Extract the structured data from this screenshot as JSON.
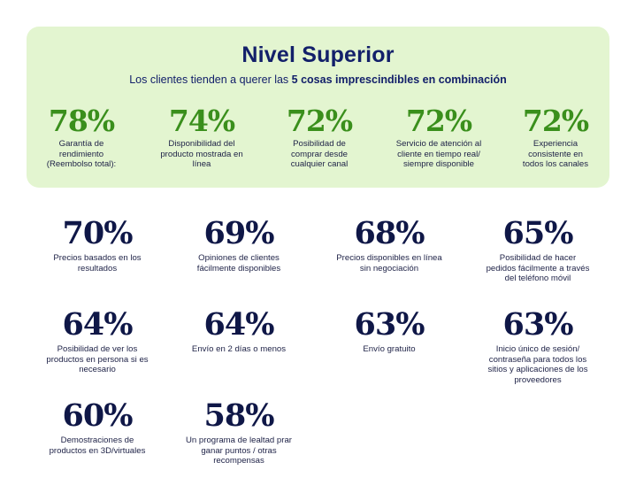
{
  "header": {
    "title": "Nivel Superior",
    "subtitle_prefix": "Los clientes tienden a querer las ",
    "subtitle_bold": "5 cosas imprescindibles en combinación"
  },
  "top_stats": [
    {
      "value": "78%",
      "label": "Garantía de rendimiento (Reembolso total):"
    },
    {
      "value": "74%",
      "label": "Disponibilidad del producto mostrada en línea"
    },
    {
      "value": "72%",
      "label": "Posibilidad de comprar desde cualquier canal"
    },
    {
      "value": "72%",
      "label": "Servicio de atención al cliente en tiempo real/ siempre disponible"
    },
    {
      "value": "72%",
      "label": "Experiencia consistente en todos los canales"
    }
  ],
  "stats": [
    {
      "value": "70%",
      "label": "Precios basados en los resultados"
    },
    {
      "value": "69%",
      "label": "Opiniones de clientes fácilmente disponibles"
    },
    {
      "value": "68%",
      "label": "Precios disponibles en línea sin negociación"
    },
    {
      "value": "65%",
      "label": "Posibilidad de hacer pedidos fácilmente a través del teléfono móvil"
    },
    {
      "value": "64%",
      "label": "Posibilidad de ver los productos en persona si es necesario"
    },
    {
      "value": "64%",
      "label": "Envío en 2 días o menos"
    },
    {
      "value": "63%",
      "label": "Envío gratuito"
    },
    {
      "value": "63%",
      "label": "Inicio único de sesión/ contraseña para todos los sitios y aplicaciones de los proveedores"
    },
    {
      "value": "60%",
      "label": "Demostraciones de productos en 3D/virtuales"
    },
    {
      "value": "58%",
      "label": "Un programa de lealtad prar ganar puntos / otras recompensas"
    }
  ]
}
